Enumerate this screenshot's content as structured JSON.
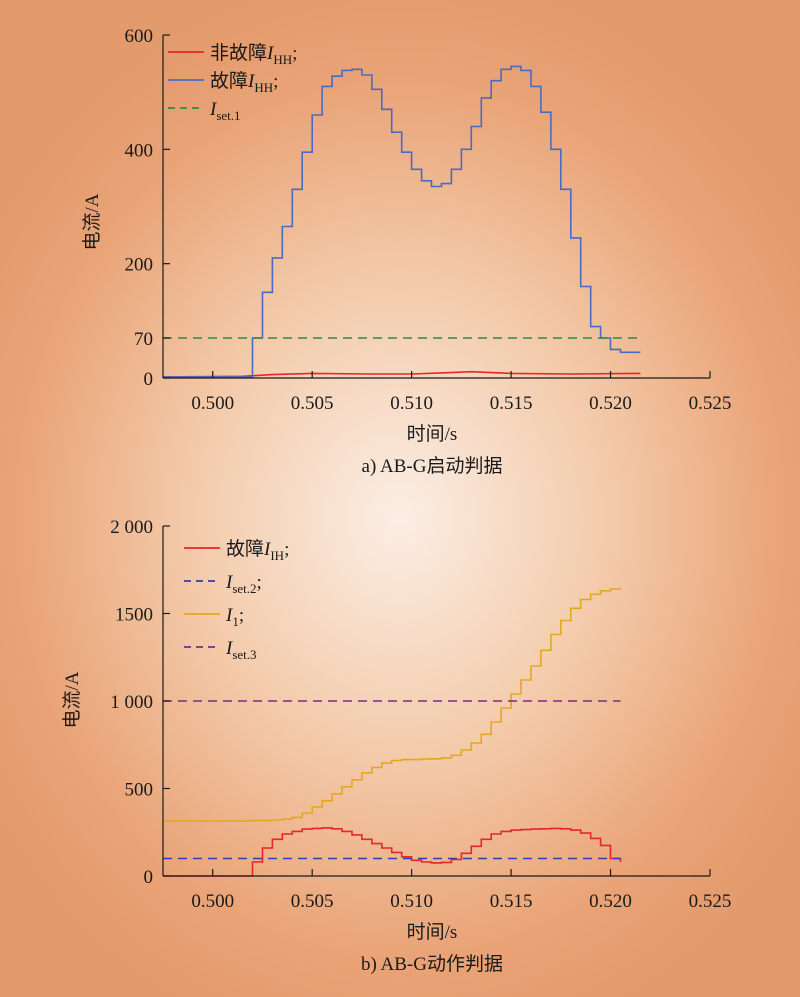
{
  "chart_data": [
    {
      "type": "line",
      "caption": "a) AB-G启动判据",
      "xlabel": "时间/s",
      "ylabel": "电流/A",
      "xlim": [
        0.4975,
        0.525
      ],
      "ylim": [
        0,
        600
      ],
      "xticks": [
        "0.500",
        "0.505",
        "0.510",
        "0.515",
        "0.520",
        "0.525"
      ],
      "xtick_values": [
        0.5,
        0.505,
        0.51,
        0.515,
        0.52,
        0.525
      ],
      "yticks": [
        "0",
        "70",
        "200",
        "400",
        "600"
      ],
      "ytick_values": [
        0,
        70,
        200,
        400,
        600
      ],
      "legend": [
        {
          "prefix": "非故障",
          "symbol": "I",
          "sub": "HH",
          "suffix": ";"
        },
        {
          "prefix": "故障",
          "symbol": "I",
          "sub": "HH",
          "suffix": ";"
        },
        {
          "prefix": "",
          "symbol": "I",
          "sub": "set.1",
          "suffix": ""
        }
      ],
      "series": [
        {
          "color": "#e8252a",
          "dash": false,
          "x": [
            0.4975,
            0.5015,
            0.503,
            0.505,
            0.508,
            0.51,
            0.5115,
            0.513,
            0.515,
            0.518,
            0.5215
          ],
          "y": [
            2,
            3,
            6,
            8,
            7,
            7,
            9,
            11,
            8,
            7,
            8
          ]
        },
        {
          "color": "#4a6bc4",
          "dash": false,
          "step": true,
          "x": [
            0.4975,
            0.5015,
            0.502,
            0.5025,
            0.503,
            0.5035,
            0.504,
            0.5045,
            0.505,
            0.5055,
            0.506,
            0.5065,
            0.507,
            0.5075,
            0.508,
            0.5085,
            0.509,
            0.5095,
            0.51,
            0.5105,
            0.511,
            0.5115,
            0.512,
            0.5125,
            0.513,
            0.5135,
            0.514,
            0.5145,
            0.515,
            0.5155,
            0.516,
            0.5165,
            0.517,
            0.5175,
            0.518,
            0.5185,
            0.519,
            0.5195,
            0.52,
            0.5205,
            0.521,
            0.5215
          ],
          "y": [
            2,
            2,
            70,
            150,
            210,
            265,
            330,
            395,
            460,
            510,
            528,
            538,
            540,
            530,
            505,
            470,
            430,
            395,
            365,
            345,
            335,
            340,
            365,
            400,
            440,
            490,
            520,
            540,
            545,
            538,
            510,
            465,
            400,
            330,
            245,
            160,
            90,
            70,
            50,
            45,
            45,
            45
          ]
        },
        {
          "color": "#2e8b3e",
          "dash": true,
          "x": [
            0.4975,
            0.5215
          ],
          "y": [
            70,
            70
          ]
        }
      ]
    },
    {
      "type": "line",
      "caption": "b) AB-G动作判据",
      "xlabel": "时间/s",
      "ylabel": "电流/A",
      "xlim": [
        0.4975,
        0.525
      ],
      "ylim": [
        0,
        2000
      ],
      "xticks": [
        "0.500",
        "0.505",
        "0.510",
        "0.515",
        "0.520",
        "0.525"
      ],
      "xtick_values": [
        0.5,
        0.505,
        0.51,
        0.515,
        0.52,
        0.525
      ],
      "yticks": [
        "0",
        "500",
        "1 000",
        "1500",
        "2 000"
      ],
      "ytick_values": [
        0,
        500,
        1000,
        1500,
        2000
      ],
      "legend": [
        {
          "prefix": "故障",
          "symbol": "I",
          "sub": "IH",
          "suffix": ";"
        },
        {
          "prefix": "",
          "symbol": "I",
          "sub": "set.2",
          "suffix": ";"
        },
        {
          "prefix": "",
          "symbol": "I",
          "sub": "1",
          "suffix": ";"
        },
        {
          "prefix": "",
          "symbol": "I",
          "sub": "set.3",
          "suffix": ""
        }
      ],
      "series": [
        {
          "color": "#e8252a",
          "dash": false,
          "step": true,
          "x": [
            0.4975,
            0.5015,
            0.502,
            0.5025,
            0.503,
            0.5035,
            0.504,
            0.5045,
            0.505,
            0.5055,
            0.506,
            0.5065,
            0.507,
            0.5075,
            0.508,
            0.5085,
            0.509,
            0.5095,
            0.51,
            0.5105,
            0.511,
            0.5115,
            0.512,
            0.5125,
            0.513,
            0.5135,
            0.514,
            0.5145,
            0.515,
            0.5155,
            0.516,
            0.5165,
            0.517,
            0.5175,
            0.518,
            0.5185,
            0.519,
            0.5195,
            0.52,
            0.5205
          ],
          "y": [
            0,
            0,
            80,
            160,
            210,
            240,
            255,
            268,
            272,
            275,
            270,
            255,
            235,
            210,
            185,
            160,
            135,
            110,
            90,
            80,
            75,
            78,
            95,
            130,
            170,
            210,
            240,
            255,
            262,
            265,
            268,
            270,
            272,
            270,
            262,
            245,
            215,
            175,
            100,
            80
          ]
        },
        {
          "color": "#2f3fb0",
          "dash": true,
          "x": [
            0.4975,
            0.5205
          ],
          "y": [
            100,
            100
          ]
        },
        {
          "color": "#e3a820",
          "dash": false,
          "step": true,
          "x": [
            0.4975,
            0.501,
            0.502,
            0.503,
            0.5035,
            0.504,
            0.5045,
            0.505,
            0.5055,
            0.506,
            0.5065,
            0.507,
            0.5075,
            0.508,
            0.5085,
            0.509,
            0.5095,
            0.51,
            0.5105,
            0.511,
            0.5115,
            0.512,
            0.5125,
            0.513,
            0.5135,
            0.514,
            0.5145,
            0.515,
            0.5155,
            0.516,
            0.5165,
            0.517,
            0.5175,
            0.518,
            0.5185,
            0.519,
            0.5195,
            0.52,
            0.5205
          ],
          "y": [
            315,
            315,
            318,
            320,
            325,
            335,
            360,
            395,
            430,
            470,
            510,
            550,
            590,
            620,
            645,
            660,
            665,
            665,
            668,
            670,
            675,
            690,
            720,
            760,
            810,
            880,
            960,
            1040,
            1120,
            1200,
            1290,
            1380,
            1460,
            1530,
            1580,
            1610,
            1630,
            1640,
            1645
          ]
        },
        {
          "color": "#7a2a8c",
          "dash": true,
          "x": [
            0.4975,
            0.5205
          ],
          "y": [
            1000,
            1000
          ]
        }
      ]
    }
  ]
}
